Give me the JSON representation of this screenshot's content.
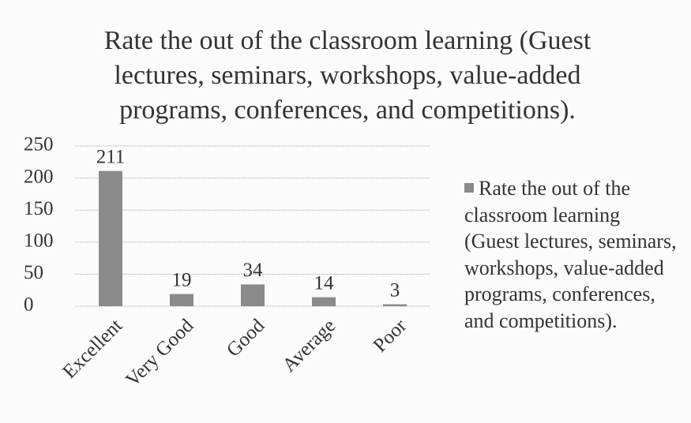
{
  "chart_data": {
    "type": "bar",
    "title": "Rate the out of the classroom learning (Guest lectures, seminars, workshops, value-added programs, conferences, and competitions).",
    "categories": [
      "Excellent",
      "Very Good",
      "Good",
      "Average",
      "Poor"
    ],
    "series": [
      {
        "name": "Rate the out of the classroom learning (Guest lectures, seminars, workshops, value-added programs, conferences, and competitions).",
        "color": "#8a8a8a",
        "values": [
          211,
          19,
          34,
          14,
          3
        ]
      }
    ],
    "ylim": [
      0,
      250
    ],
    "yticks": [
      0,
      50,
      100,
      150,
      200,
      250
    ],
    "grid": true,
    "legend": "right"
  }
}
